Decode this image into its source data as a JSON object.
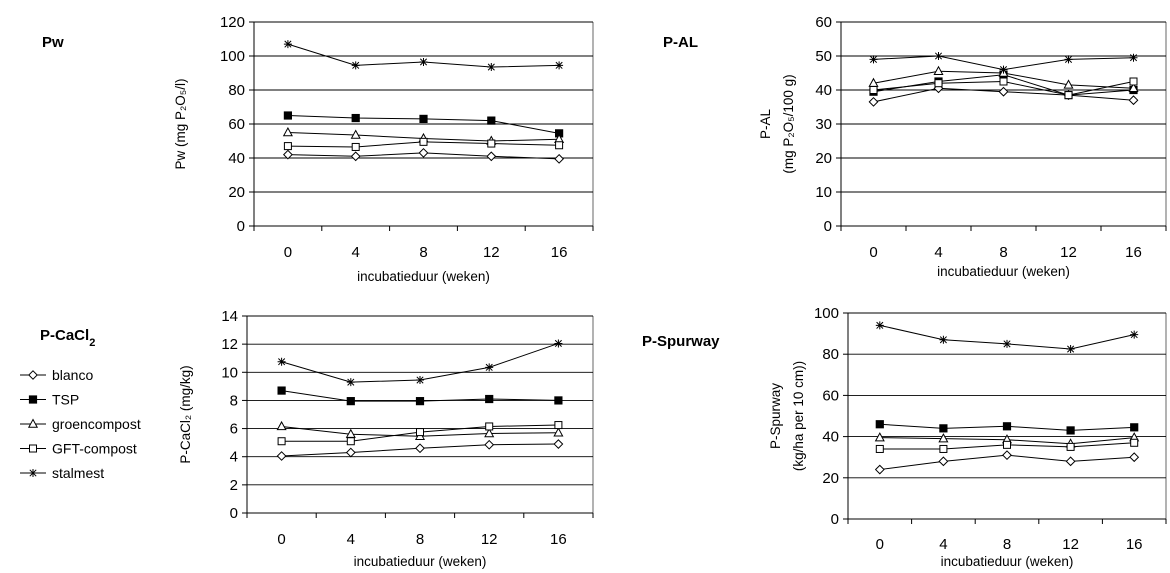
{
  "chart_data": [
    {
      "type": "line",
      "title": "Pw",
      "ylabel_lines": [
        "Pw (mg P₂O₅/l)"
      ],
      "xlabel": "incubatieduur (weken)",
      "x": [
        0,
        4,
        8,
        12,
        16
      ],
      "ylim": [
        0,
        120
      ],
      "ystep": 20,
      "grid": true,
      "series": [
        {
          "name": "blanco",
          "marker": "diamond",
          "values": [
            42,
            41,
            43,
            41,
            39.5
          ]
        },
        {
          "name": "TSP",
          "marker": "filled-square",
          "values": [
            65,
            63.5,
            63,
            62,
            54.5
          ]
        },
        {
          "name": "groencompost",
          "marker": "triangle",
          "values": [
            55,
            53.5,
            51.5,
            50,
            51
          ]
        },
        {
          "name": "GFT-compost",
          "marker": "square",
          "values": [
            47,
            46.5,
            49.5,
            48.5,
            47.5
          ]
        },
        {
          "name": "stalmest",
          "marker": "star",
          "values": [
            107,
            94.5,
            96.5,
            93.5,
            94.5
          ]
        }
      ]
    },
    {
      "type": "line",
      "title": "P-AL",
      "ylabel_lines": [
        "P-AL",
        "(mg P₂O₅/100 g)"
      ],
      "xlabel": "incubatieduur (weken)",
      "x": [
        0,
        4,
        8,
        12,
        16
      ],
      "ylim": [
        0,
        60
      ],
      "ystep": 10,
      "grid": true,
      "series": [
        {
          "name": "blanco",
          "marker": "diamond",
          "values": [
            36.5,
            40.5,
            39.5,
            38.5,
            37
          ]
        },
        {
          "name": "TSP",
          "marker": "filled-square",
          "values": [
            39.5,
            42.5,
            44.5,
            38.5,
            40
          ]
        },
        {
          "name": "groencompost",
          "marker": "triangle",
          "values": [
            42,
            45.5,
            45,
            41.5,
            40.5
          ]
        },
        {
          "name": "GFT-compost",
          "marker": "square",
          "values": [
            40,
            42,
            42.5,
            38.5,
            42.5
          ]
        },
        {
          "name": "stalmest",
          "marker": "star",
          "values": [
            49,
            50,
            46,
            49,
            49.5
          ]
        }
      ]
    },
    {
      "type": "line",
      "title": "P-CaCl",
      "title_sub": "2",
      "ylabel_lines": [
        "P-CaCl₂ (mg/kg)"
      ],
      "xlabel": "incubatieduur (weken)",
      "x": [
        0,
        4,
        8,
        12,
        16
      ],
      "ylim": [
        0,
        14
      ],
      "ystep": 2,
      "grid": true,
      "series": [
        {
          "name": "blanco",
          "marker": "diamond",
          "values": [
            4.05,
            4.3,
            4.6,
            4.85,
            4.9
          ]
        },
        {
          "name": "TSP",
          "marker": "filled-square",
          "values": [
            8.7,
            7.95,
            7.95,
            8.1,
            8.0
          ]
        },
        {
          "name": "groencompost",
          "marker": "triangle",
          "values": [
            6.15,
            5.6,
            5.45,
            5.65,
            5.7
          ]
        },
        {
          "name": "GFT-compost",
          "marker": "square",
          "values": [
            5.1,
            5.1,
            5.75,
            6.15,
            6.25
          ]
        },
        {
          "name": "stalmest",
          "marker": "star",
          "values": [
            10.75,
            9.3,
            9.45,
            10.35,
            12.05
          ]
        }
      ]
    },
    {
      "type": "line",
      "title": "P-Spurway",
      "ylabel_lines": [
        "P-Spurway",
        "(kg/ha per 10 cm))"
      ],
      "xlabel": "incubatieduur (weken)",
      "x": [
        0,
        4,
        8,
        12,
        16
      ],
      "ylim": [
        0,
        100
      ],
      "ystep": 20,
      "grid": true,
      "series": [
        {
          "name": "blanco",
          "marker": "diamond",
          "values": [
            24,
            28,
            31,
            28,
            30
          ]
        },
        {
          "name": "TSP",
          "marker": "filled-square",
          "values": [
            46,
            44,
            45,
            43,
            44.5
          ]
        },
        {
          "name": "groencompost",
          "marker": "triangle",
          "values": [
            39.5,
            39,
            38.5,
            36.5,
            39.5
          ]
        },
        {
          "name": "GFT-compost",
          "marker": "square",
          "values": [
            34,
            34,
            36,
            35,
            37
          ]
        },
        {
          "name": "stalmest",
          "marker": "star",
          "values": [
            94,
            87,
            85,
            82.5,
            89.5
          ]
        }
      ]
    }
  ],
  "legend": [
    {
      "name": "blanco",
      "marker": "diamond"
    },
    {
      "name": "TSP",
      "marker": "filled-square"
    },
    {
      "name": "groencompost",
      "marker": "triangle"
    },
    {
      "name": "GFT-compost",
      "marker": "square"
    },
    {
      "name": "stalmest",
      "marker": "star"
    }
  ]
}
